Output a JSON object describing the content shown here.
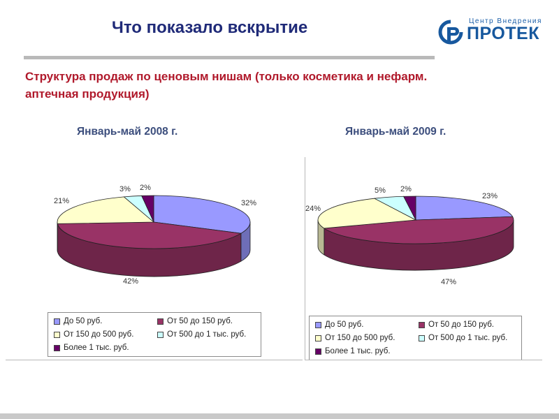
{
  "header": {
    "title": "Что показало вскрытие",
    "subtitle": "Структура продаж по ценовым нишам (только косметика и нефарм. аптечная продукция)"
  },
  "logo": {
    "small_text": "Центр Внедрения",
    "brand_text": "ПРОТЕК"
  },
  "colors": {
    "title": "#1f2a78",
    "subtitle": "#b0192b",
    "chart_title": "#3c4e7d",
    "logo": "#17589e"
  },
  "chart_data": [
    {
      "type": "pie",
      "title": "Январь-май 2008 г.",
      "categories": [
        "До 50 руб.",
        "От 50 до 150 руб.",
        "От 150 до 500 руб.",
        "От 500 до 1 тыс. руб.",
        "Более 1 тыс. руб."
      ],
      "values": [
        32,
        42,
        21,
        3,
        2
      ],
      "labels": [
        "32%",
        "42%",
        "21%",
        "3%",
        "2%"
      ],
      "colors": [
        "#9999ff",
        "#993366",
        "#ffffcc",
        "#ccffff",
        "#660066"
      ],
      "legend_placement": "bottom"
    },
    {
      "type": "pie",
      "title": "Январь-май 2009 г.",
      "categories": [
        "До 50 руб.",
        "От 50 до 150 руб.",
        "От 150 до 500 руб.",
        "От 500 до 1 тыс. руб.",
        "Более 1 тыс. руб."
      ],
      "values": [
        23,
        47,
        24,
        5,
        2
      ],
      "labels": [
        "23%",
        "47%",
        "24%",
        "5%",
        "2%"
      ],
      "colors": [
        "#9999ff",
        "#993366",
        "#ffffcc",
        "#ccffff",
        "#660066"
      ],
      "legend_placement": "bottom"
    }
  ]
}
